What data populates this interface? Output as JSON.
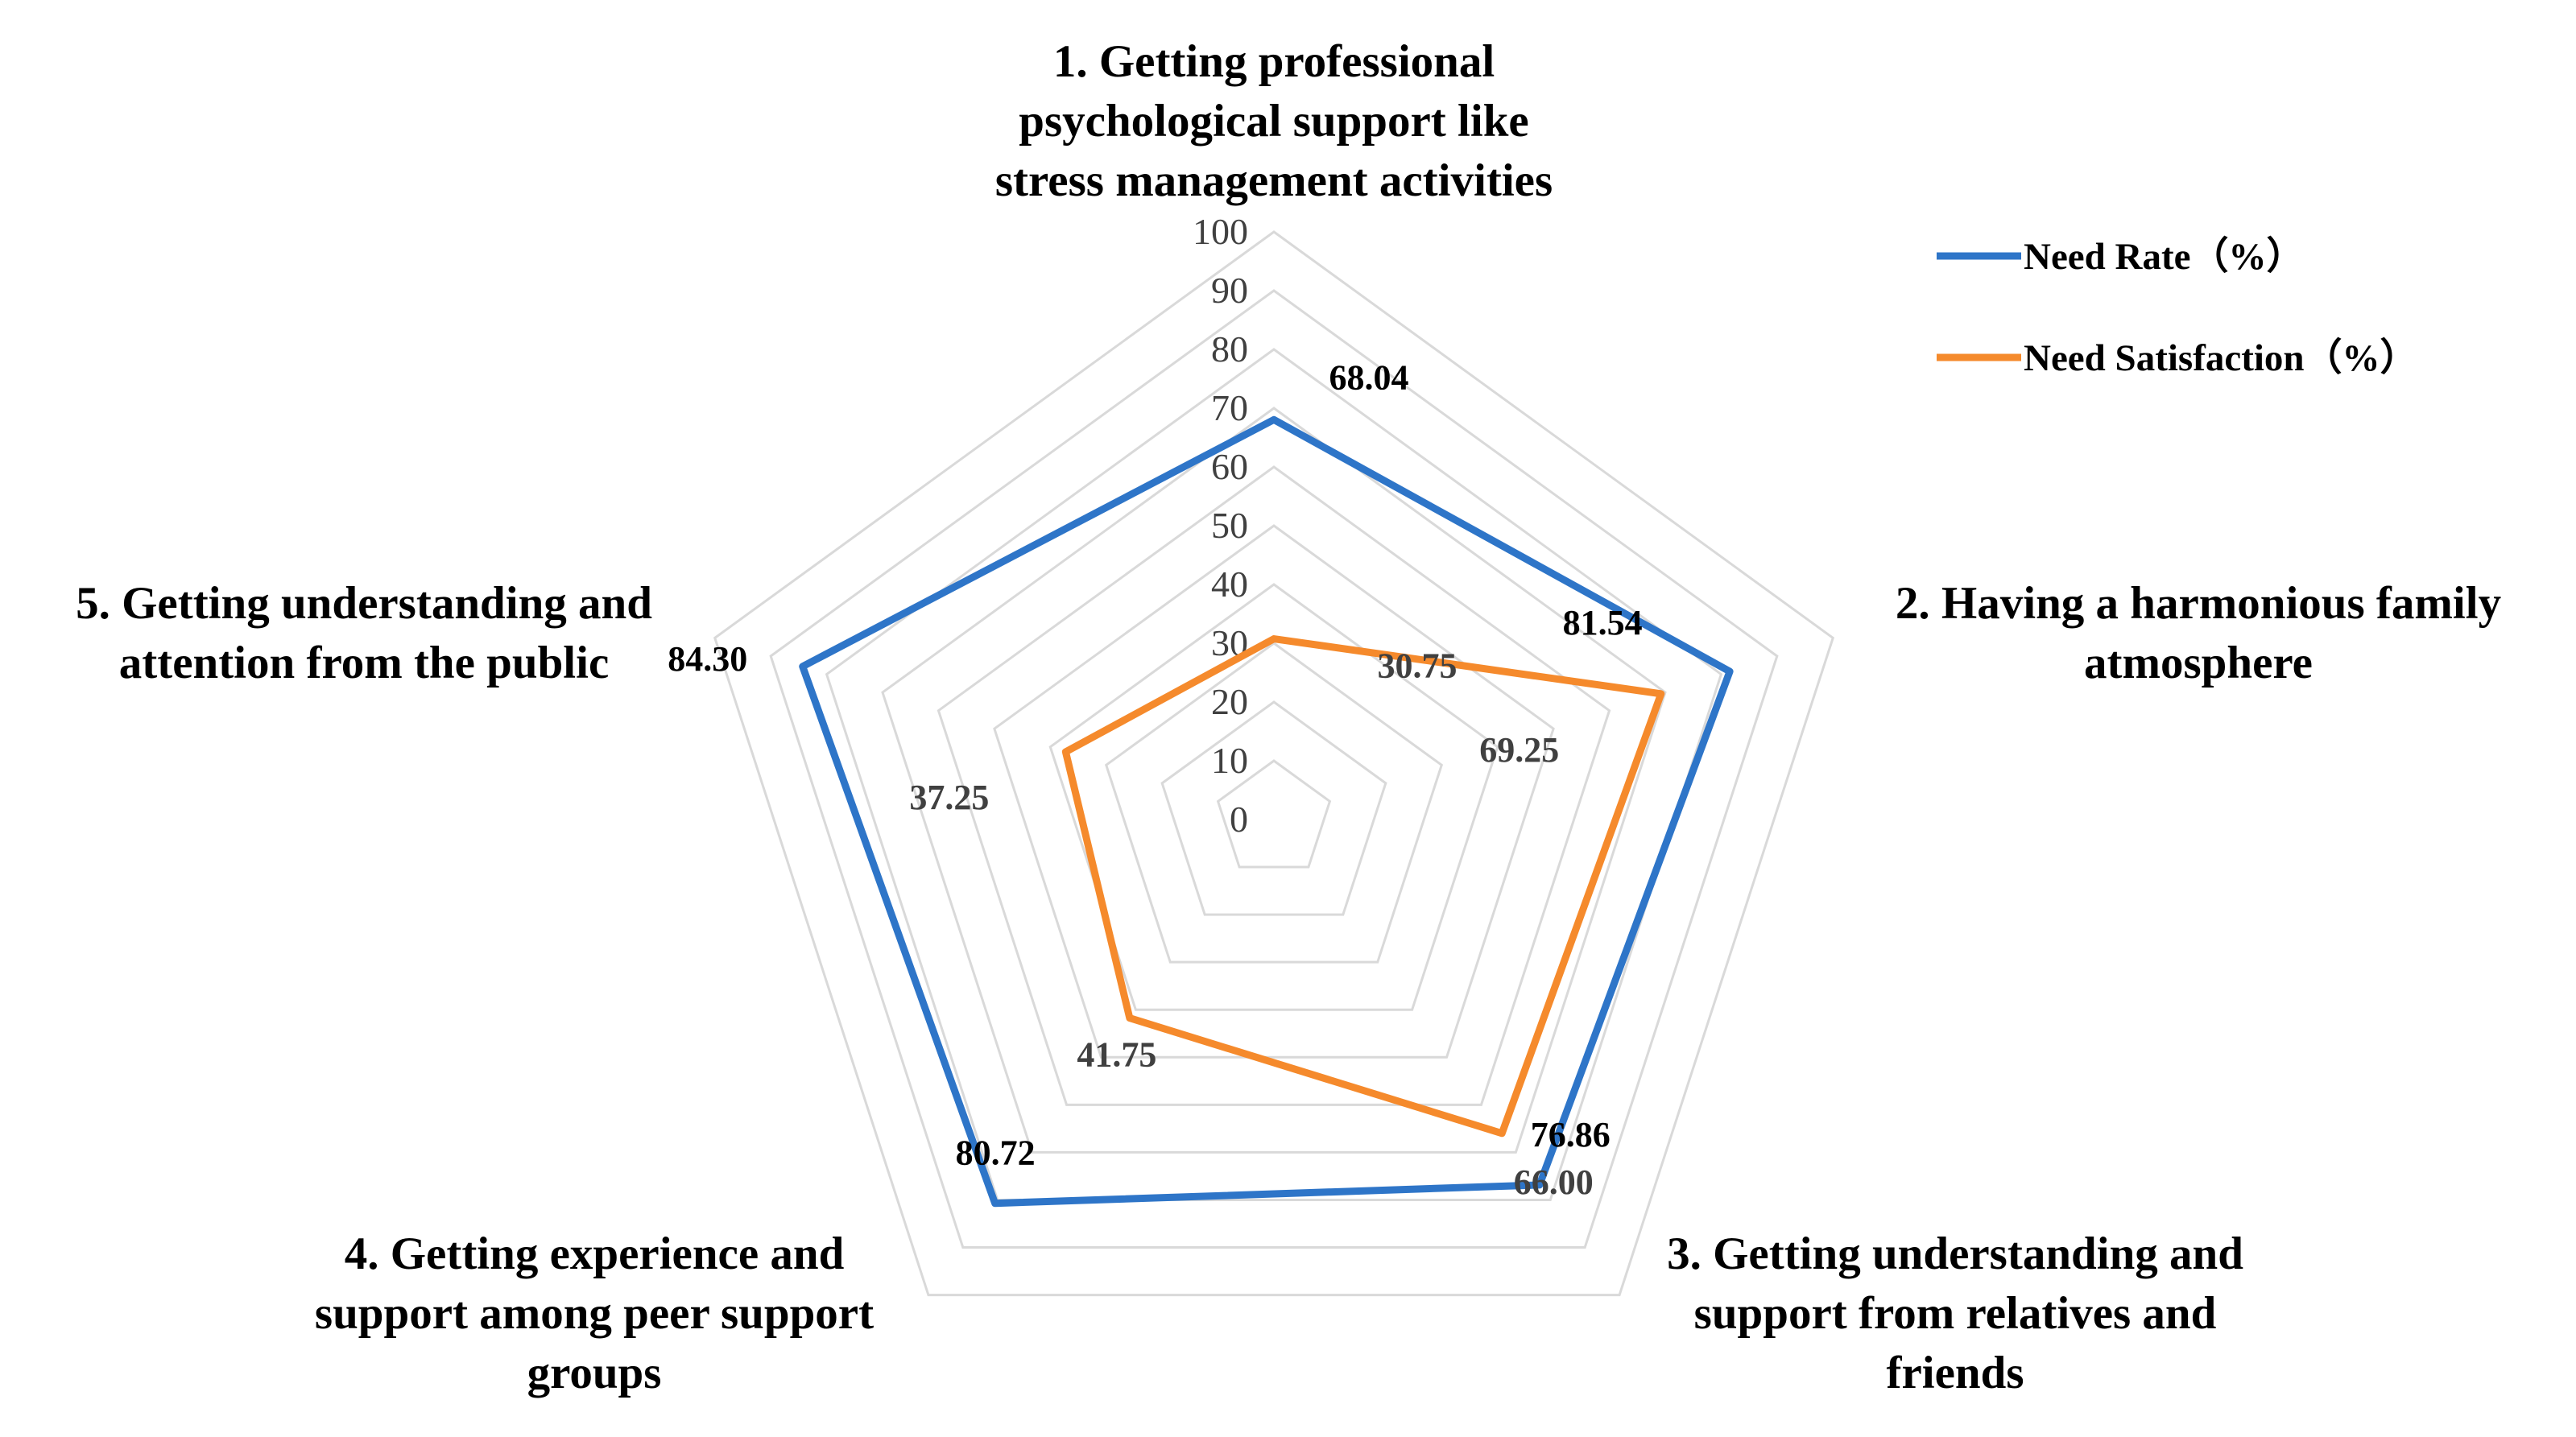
{
  "chart_data": {
    "type": "radar",
    "categories": [
      [
        "1. Getting professional",
        "psychological support like",
        "stress management activities"
      ],
      [
        "2. Having a harmonious family",
        "atmosphere"
      ],
      [
        "3. Getting understanding and",
        "support from relatives and",
        "friends"
      ],
      [
        "4. Getting experience and",
        "support among peer support",
        "groups"
      ],
      [
        "5. Getting understanding and",
        "attention from the public"
      ]
    ],
    "series": [
      {
        "name": "Need Rate（%）",
        "color": "#2E75C8",
        "values": [
          68.04,
          81.54,
          76.86,
          80.72,
          84.3
        ],
        "labels": [
          "68.04",
          "81.54",
          "76.86",
          "80.72",
          "84.30"
        ],
        "label_color": "#000000"
      },
      {
        "name": "Need Satisfaction（%）",
        "color": "#F58A2C",
        "values": [
          30.75,
          69.25,
          66.0,
          41.75,
          37.25
        ],
        "labels": [
          "30.75",
          "69.25",
          "66.00",
          "41.75",
          "37.25"
        ],
        "label_color": "#404040"
      }
    ],
    "rlim": [
      0,
      100
    ],
    "ticks": [
      "0",
      "10",
      "20",
      "30",
      "40",
      "50",
      "60",
      "70",
      "80",
      "90",
      "100"
    ],
    "grid": true,
    "legend": "top-right"
  }
}
